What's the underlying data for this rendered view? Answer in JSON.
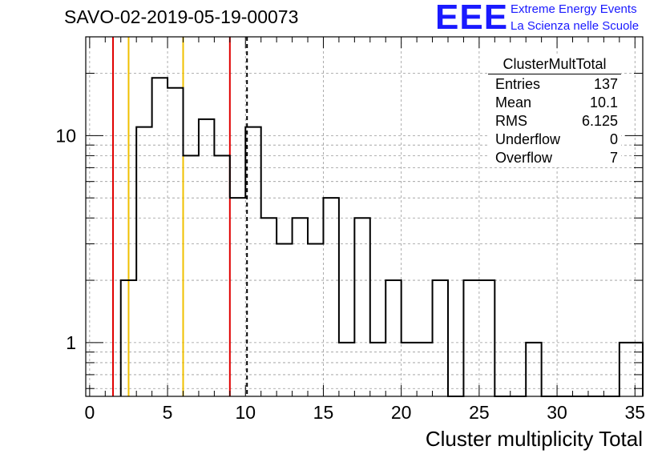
{
  "title": "SAVO-02-2019-05-19-00073",
  "logo": {
    "mark": "EEE",
    "line1": "Extreme Energy Events",
    "line2": "La Scienza nelle Scuole"
  },
  "stats": {
    "title": "ClusterMultTotal",
    "rows": [
      {
        "label": "Entries",
        "value": "137"
      },
      {
        "label": "Mean",
        "value": "10.1"
      },
      {
        "label": "RMS",
        "value": "6.125"
      },
      {
        "label": "Underflow",
        "value": "0"
      },
      {
        "label": "Overflow",
        "value": "7"
      }
    ]
  },
  "chart_data": {
    "type": "bar",
    "histogram": true,
    "xlabel": "Cluster multiplicity Total",
    "ylabel": "",
    "xlim": [
      -0.25,
      35.5
    ],
    "ylim": [
      0.55,
      30
    ],
    "yscale": "log",
    "grid": true,
    "bin_width": 1,
    "bin_starts": [
      2,
      3,
      4,
      5,
      6,
      7,
      8,
      9,
      10,
      11,
      12,
      13,
      14,
      15,
      16,
      17,
      18,
      19,
      20,
      21,
      22,
      23,
      24,
      25,
      26,
      27,
      28,
      29,
      30,
      31,
      32,
      33,
      34,
      35
    ],
    "values": [
      2,
      11,
      19,
      17,
      8,
      12,
      8,
      5,
      11,
      4,
      3,
      4,
      3,
      5,
      1,
      4,
      1,
      2,
      1,
      1,
      2,
      0,
      2,
      2,
      0,
      0,
      1,
      0,
      0,
      0,
      0,
      0,
      1,
      1
    ],
    "x_ticks": [
      0,
      5,
      10,
      15,
      20,
      25,
      30,
      35
    ],
    "y_ticks": [
      1,
      10
    ],
    "reference_lines": [
      {
        "x": 1.5,
        "color": "#e00000",
        "style": "solid"
      },
      {
        "x": 2.5,
        "color": "#f0c000",
        "style": "solid"
      },
      {
        "x": 6.0,
        "color": "#f0c000",
        "style": "solid"
      },
      {
        "x": 9.0,
        "color": "#e00000",
        "style": "solid"
      },
      {
        "x": 10.1,
        "color": "#000000",
        "style": "dashed"
      }
    ],
    "legend_position": "top-right"
  }
}
